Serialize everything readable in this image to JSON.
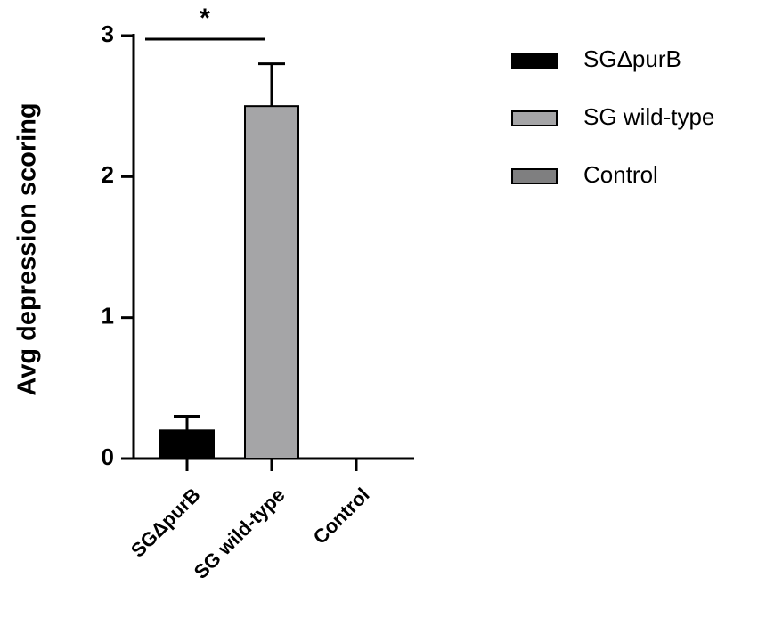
{
  "chart_data": {
    "type": "bar",
    "categories": [
      "SGΔpurB",
      "SG wild-type",
      "Control"
    ],
    "values": [
      0.2,
      2.5,
      0
    ],
    "errors": [
      0.1,
      0.3,
      0
    ],
    "colors": [
      "#000000",
      "#a5a5a7",
      "#7f7f80"
    ],
    "ylabel": "Avg depression scoring",
    "ylim": [
      0,
      3
    ],
    "yticks": [
      0,
      1,
      2,
      3
    ],
    "annotation": "*"
  }
}
